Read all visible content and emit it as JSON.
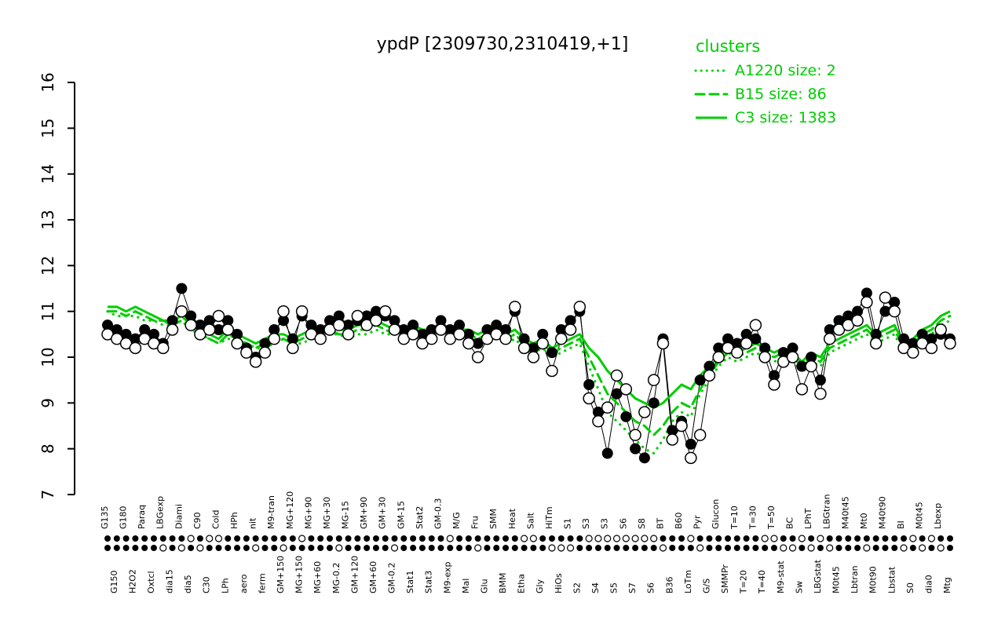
{
  "figure": {
    "title": "ypdP [2309730,2310419,+1]",
    "colors": {
      "cluster_green": "#00CC00",
      "point_black": "#000000",
      "background": "#FFFFFF"
    }
  },
  "legend": {
    "heading": "clusters",
    "entries": [
      {
        "label": "A1220 size: 2",
        "style": "dotted"
      },
      {
        "label": "B15 size: 86",
        "style": "dashed"
      },
      {
        "label": "C3 size: 1383",
        "style": "solid"
      }
    ]
  },
  "chart_data": {
    "type": "line",
    "title": "ypdP [2309730,2310419,+1]",
    "xlabel": "",
    "ylabel": "",
    "ylim": [
      7,
      16
    ],
    "yticks": [
      7,
      8,
      9,
      10,
      11,
      12,
      13,
      14,
      15,
      16
    ],
    "grid": false,
    "legend_position": "top-right",
    "categories": [
      "G135",
      "G150",
      "G180",
      "H2O2",
      "Paraq",
      "Oxtcl",
      "LBGexp",
      "dia15",
      "Diami",
      "dia5",
      "C90",
      "C30",
      "Cold",
      "LPh",
      "HPh",
      "aero",
      "nit",
      "ferm",
      "M9-tran",
      "GM+150",
      "MG+120",
      "MG+150",
      "MG+90",
      "MG+60",
      "MG+30",
      "MG-0.2",
      "MG-15",
      "GM+120",
      "GM+90",
      "GM+60",
      "GM+30",
      "GM-0.2",
      "GM-15",
      "Stat1",
      "Stat2",
      "Stat3",
      "GM-0.3",
      "M9-exp",
      "M/G",
      "Mal",
      "Fru",
      "Glu",
      "SMM",
      "BMM",
      "Heat",
      "Etha",
      "Salt",
      "Gly",
      "HiTm",
      "HiOs",
      "S1",
      "S2",
      "S3",
      "S4",
      "S3",
      "S5",
      "S6",
      "S7",
      "S8",
      "S6",
      "BT",
      "B36",
      "B60",
      "LoTm",
      "Pyr",
      "G/S",
      "Glucon",
      "SMMPr",
      "T=10",
      "T=20",
      "T=30",
      "T=40",
      "T=50",
      "M9-stat",
      "BC",
      "Sw",
      "LPhT",
      "LBGstat",
      "LBGtran",
      "M0t45",
      "M40t45",
      "Lbtran",
      "Mt0",
      "M0t90",
      "M40t90",
      "Lbstat",
      "BI",
      "S0",
      "M0t45",
      "dia0",
      "Lbexp",
      "Mtg"
    ],
    "series": [
      {
        "name": "probe-filled",
        "marker": "filled-circle",
        "color": "#000000",
        "values": [
          10.7,
          10.6,
          10.5,
          10.4,
          10.6,
          10.5,
          10.3,
          10.8,
          11.5,
          10.9,
          10.7,
          10.8,
          10.6,
          10.8,
          10.5,
          10.2,
          10.0,
          10.3,
          10.6,
          10.8,
          10.4,
          10.9,
          10.7,
          10.6,
          10.8,
          10.9,
          10.7,
          10.8,
          10.9,
          11.0,
          10.9,
          10.8,
          10.6,
          10.7,
          10.5,
          10.6,
          10.8,
          10.6,
          10.7,
          10.5,
          10.3,
          10.6,
          10.7,
          10.6,
          11.0,
          10.4,
          10.2,
          10.5,
          10.1,
          10.6,
          10.8,
          11.0,
          9.4,
          8.8,
          7.9,
          9.2,
          8.7,
          8.0,
          7.8,
          9.0,
          10.4,
          8.4,
          8.6,
          8.1,
          9.5,
          9.8,
          10.2,
          10.4,
          10.3,
          10.5,
          10.4,
          10.2,
          9.6,
          10.1,
          10.2,
          9.8,
          10.0,
          9.5,
          10.6,
          10.8,
          10.9,
          11.0,
          11.4,
          10.5,
          11.0,
          11.2,
          10.4,
          10.3,
          10.5,
          10.4,
          10.5,
          10.4
        ]
      },
      {
        "name": "probe-open",
        "marker": "open-circle",
        "color": "#000000",
        "values": [
          10.5,
          10.4,
          10.3,
          10.2,
          10.4,
          10.3,
          10.2,
          10.6,
          11.0,
          10.7,
          10.5,
          10.6,
          10.9,
          10.6,
          10.3,
          10.1,
          9.9,
          10.1,
          10.4,
          11.0,
          10.2,
          11.0,
          10.5,
          10.4,
          10.6,
          10.7,
          10.5,
          10.9,
          10.7,
          10.8,
          11.0,
          10.6,
          10.4,
          10.5,
          10.3,
          10.4,
          10.6,
          10.4,
          10.5,
          10.3,
          10.0,
          10.4,
          10.5,
          10.4,
          11.1,
          10.2,
          10.0,
          10.3,
          9.7,
          10.4,
          10.6,
          11.1,
          9.1,
          8.6,
          8.9,
          9.6,
          9.3,
          8.3,
          8.8,
          9.5,
          10.3,
          8.2,
          8.5,
          7.8,
          8.3,
          9.6,
          10.0,
          10.2,
          10.1,
          10.3,
          10.7,
          10.0,
          9.4,
          9.9,
          10.0,
          9.3,
          9.8,
          9.2,
          10.4,
          10.6,
          10.7,
          10.8,
          11.2,
          10.3,
          11.3,
          11.0,
          10.2,
          10.1,
          10.3,
          10.2,
          10.6,
          10.3
        ]
      },
      {
        "name": "C3",
        "style": "solid",
        "color": "#00CC00",
        "size": 1383,
        "values": [
          11.1,
          11.1,
          11.0,
          11.1,
          11.0,
          10.9,
          10.8,
          10.8,
          10.9,
          10.7,
          10.6,
          10.5,
          10.4,
          10.6,
          10.5,
          10.4,
          10.3,
          10.4,
          10.5,
          10.5,
          10.4,
          10.5,
          10.6,
          10.6,
          10.7,
          10.6,
          10.6,
          10.7,
          10.7,
          10.8,
          10.7,
          10.6,
          10.6,
          10.7,
          10.6,
          10.6,
          10.7,
          10.6,
          10.6,
          10.6,
          10.5,
          10.6,
          10.6,
          10.5,
          10.6,
          10.4,
          10.3,
          10.4,
          10.2,
          10.3,
          10.4,
          10.5,
          10.2,
          10.0,
          9.7,
          9.5,
          9.3,
          9.1,
          9.0,
          8.9,
          9.0,
          9.2,
          9.4,
          9.3,
          9.6,
          9.8,
          10.0,
          10.2,
          10.1,
          10.2,
          10.3,
          10.2,
          10.1,
          10.2,
          10.1,
          9.9,
          10.1,
          10.0,
          10.3,
          10.4,
          10.5,
          10.6,
          10.7,
          10.5,
          10.6,
          10.7,
          10.3,
          10.4,
          10.6,
          10.7,
          10.9,
          11.0
        ]
      },
      {
        "name": "B15",
        "style": "dashed",
        "color": "#00CC00",
        "size": 86,
        "values": [
          11.0,
          11.0,
          10.9,
          11.0,
          10.9,
          10.8,
          10.8,
          10.7,
          10.8,
          10.6,
          10.5,
          10.4,
          10.3,
          10.5,
          10.4,
          10.3,
          10.2,
          10.3,
          10.4,
          10.4,
          10.3,
          10.4,
          10.5,
          10.5,
          10.6,
          10.5,
          10.5,
          10.6,
          10.6,
          10.7,
          10.6,
          10.5,
          10.5,
          10.6,
          10.5,
          10.5,
          10.6,
          10.5,
          10.5,
          10.5,
          10.4,
          10.5,
          10.5,
          10.4,
          10.5,
          10.3,
          10.2,
          10.3,
          10.1,
          10.2,
          10.3,
          10.4,
          10.0,
          9.6,
          9.2,
          9.0,
          8.8,
          8.6,
          8.5,
          8.3,
          8.5,
          8.8,
          9.0,
          8.9,
          9.3,
          9.6,
          9.9,
          10.1,
          10.0,
          10.1,
          10.2,
          10.1,
          10.0,
          10.1,
          10.0,
          9.8,
          10.0,
          9.9,
          10.2,
          10.3,
          10.4,
          10.5,
          10.6,
          10.4,
          10.5,
          10.6,
          10.2,
          10.3,
          10.5,
          10.6,
          10.8,
          10.9
        ]
      },
      {
        "name": "A1220",
        "style": "dotted",
        "color": "#00CC00",
        "size": 2,
        "values": [
          11.0,
          10.9,
          10.9,
          10.9,
          10.8,
          10.8,
          10.7,
          10.7,
          10.8,
          10.6,
          10.5,
          10.4,
          10.3,
          10.4,
          10.4,
          10.3,
          10.2,
          10.2,
          10.3,
          10.4,
          10.3,
          10.3,
          10.4,
          10.4,
          10.5,
          10.5,
          10.4,
          10.5,
          10.5,
          10.6,
          10.5,
          10.5,
          10.4,
          10.5,
          10.4,
          10.4,
          10.5,
          10.4,
          10.4,
          10.4,
          10.3,
          10.4,
          10.4,
          10.3,
          10.4,
          10.2,
          10.1,
          10.2,
          10.0,
          10.1,
          10.2,
          10.3,
          9.8,
          9.3,
          8.8,
          8.6,
          8.4,
          8.2,
          8.0,
          7.9,
          8.2,
          8.6,
          8.8,
          8.7,
          9.2,
          9.5,
          9.8,
          10.0,
          9.9,
          10.0,
          10.1,
          10.0,
          9.9,
          10.0,
          9.9,
          9.7,
          9.9,
          9.8,
          10.1,
          10.2,
          10.3,
          10.4,
          10.5,
          10.3,
          10.4,
          10.5,
          10.1,
          10.2,
          10.4,
          10.5,
          10.7,
          10.8
        ]
      }
    ],
    "bottom_markers": {
      "row1": [
        1,
        1,
        1,
        1,
        1,
        1,
        1,
        1,
        1,
        0,
        1,
        0,
        0,
        1,
        1,
        1,
        1,
        1,
        1,
        1,
        1,
        0,
        1,
        1,
        1,
        1,
        1,
        1,
        1,
        1,
        1,
        1,
        1,
        1,
        1,
        1,
        1,
        0,
        1,
        1,
        1,
        1,
        1,
        1,
        1,
        0,
        0,
        1,
        1,
        1,
        1,
        1,
        0,
        0,
        0,
        0,
        0,
        0,
        0,
        0,
        1,
        1,
        1,
        0,
        1,
        1,
        1,
        1,
        1,
        1,
        1,
        0,
        0,
        1,
        1,
        0,
        1,
        0,
        1,
        1,
        1,
        1,
        1,
        1,
        1,
        1,
        1,
        0,
        1,
        0,
        1,
        1
      ],
      "row2": [
        1,
        1,
        1,
        1,
        1,
        1,
        0,
        1,
        0,
        1,
        0,
        1,
        1,
        1,
        1,
        1,
        0,
        1,
        1,
        0,
        1,
        1,
        1,
        1,
        1,
        0,
        1,
        1,
        1,
        1,
        1,
        0,
        1,
        1,
        1,
        1,
        1,
        1,
        1,
        1,
        0,
        1,
        1,
        1,
        1,
        1,
        1,
        1,
        0,
        0,
        0,
        1,
        1,
        1,
        1,
        1,
        1,
        1,
        1,
        1,
        0,
        1,
        1,
        1,
        0,
        1,
        1,
        1,
        1,
        1,
        1,
        1,
        1,
        0,
        0,
        1,
        0,
        1,
        0,
        1,
        1,
        1,
        0,
        1,
        1,
        1,
        0,
        1,
        0,
        1,
        0,
        1
      ]
    }
  }
}
